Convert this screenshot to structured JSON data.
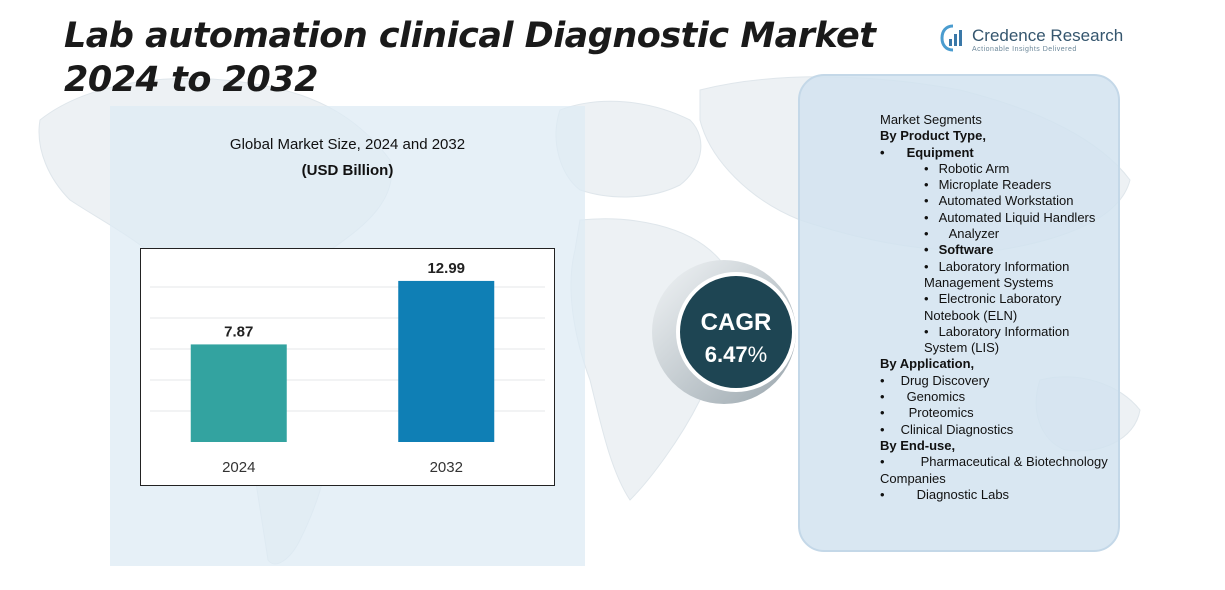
{
  "title": "Lab automation clinical Diagnostic Market 2024 to 2032",
  "logo": {
    "name": "Credence Research",
    "tagline": "Actionable Insights Delivered"
  },
  "chart_data": {
    "type": "bar",
    "title": "Global Market Size, 2024 and 2032",
    "subtitle": "(USD Billion)",
    "categories": [
      "2024",
      "2032"
    ],
    "values": [
      7.87,
      12.99
    ],
    "value_labels": [
      "7.87",
      "12.99"
    ],
    "colors": [
      "#33a3a0",
      "#0f7fb5"
    ],
    "ylim": [
      0,
      15
    ],
    "grid": true
  },
  "cagr": {
    "label": "CAGR",
    "value": "6.47",
    "unit": "%"
  },
  "segments": {
    "heading": "Market Segments",
    "product_type": {
      "label": "By Product Type,",
      "equipment_label": "Equipment",
      "equipment_items": [
        "Robotic Arm",
        "Microplate Readers",
        "Automated Workstation",
        "Automated Liquid Handlers",
        "Analyzer"
      ],
      "software_label": "Software",
      "software_items": [
        "Laboratory Information Management Systems",
        "Electronic Laboratory Notebook (ELN)",
        "Laboratory Information System (LIS)"
      ]
    },
    "application": {
      "label": "By Application,",
      "items": [
        "Drug Discovery",
        "Genomics",
        "Proteomics",
        "Clinical Diagnostics"
      ]
    },
    "end_use": {
      "label": "By End-use,",
      "items": [
        "Pharmaceutical & Biotechnology Companies",
        "Diagnostic Labs"
      ]
    }
  }
}
